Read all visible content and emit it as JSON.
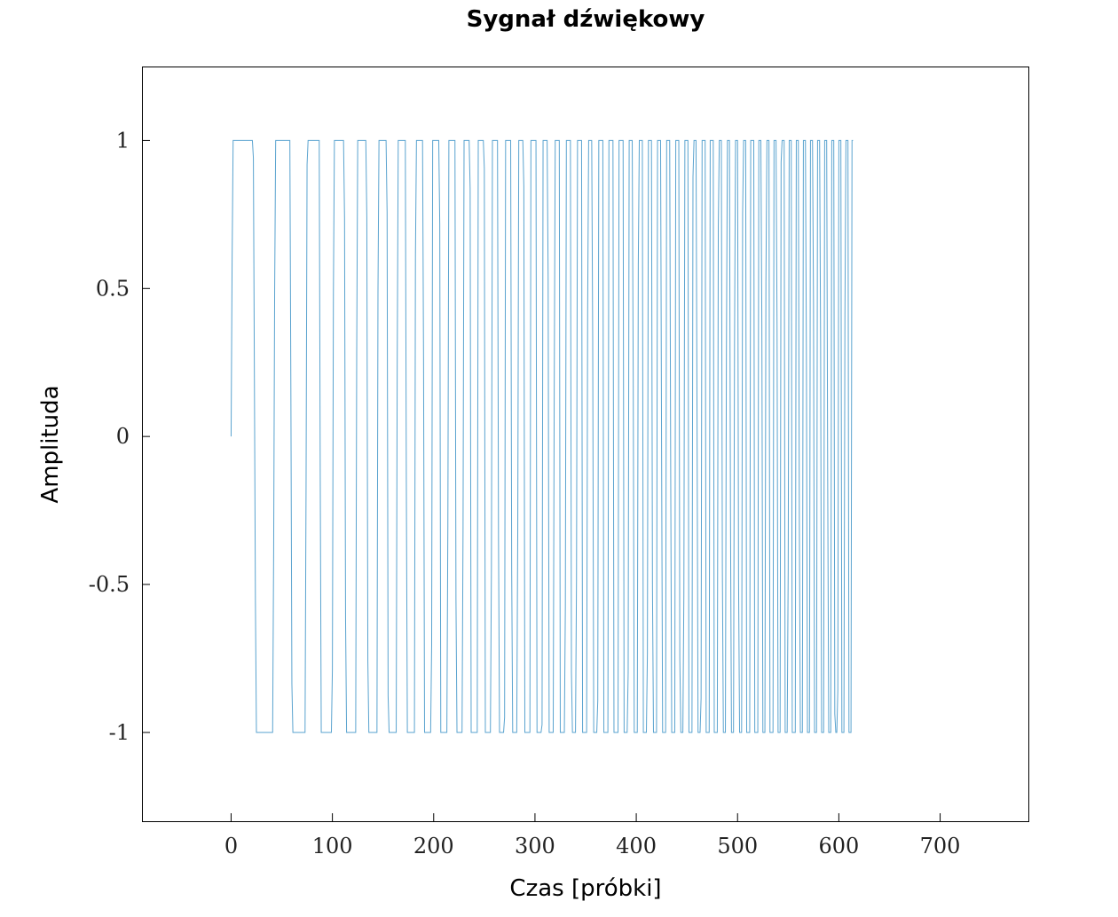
{
  "chart_data": {
    "type": "line",
    "title": "Sygnał dźwiękowy",
    "xlabel": "Czas [próbki]",
    "ylabel": "Amplituda",
    "xlim": [
      -88,
      788
    ],
    "ylim": [
      -1.3,
      1.25
    ],
    "xticks": [
      "0",
      "100",
      "200",
      "300",
      "400",
      "500",
      "600",
      "700"
    ],
    "xtick_values": [
      0,
      100,
      200,
      300,
      400,
      500,
      600,
      700
    ],
    "yticks": [
      "1",
      "0.5",
      "0",
      "-0.5",
      "-1"
    ],
    "ytick_values": [
      1,
      0.5,
      0,
      -0.5,
      -1
    ],
    "grid": false,
    "series": [
      {
        "color": "#5aa3cf",
        "signal": "chirp, square-like (clipped), amplitude ±1",
        "n_samples": 615,
        "x_start": 0,
        "x_end": 614,
        "start_value": 0,
        "phase_per_sample_start": 0.12,
        "phase_per_sample_end": 0.95,
        "clip_factor": 5
      }
    ]
  }
}
